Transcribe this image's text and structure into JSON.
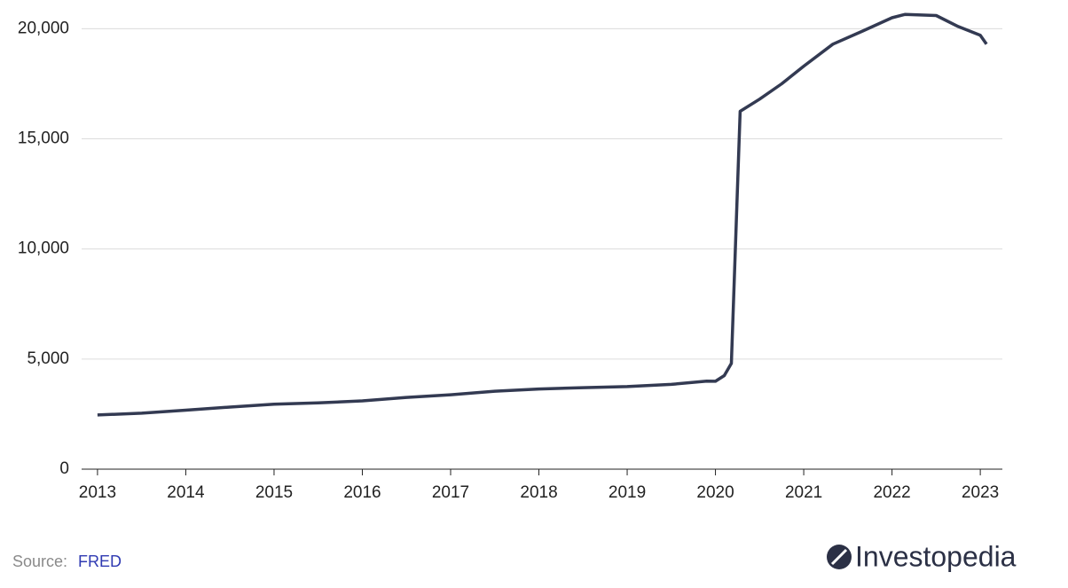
{
  "chart_data": {
    "type": "line",
    "x": [
      2013.0,
      2013.5,
      2014.0,
      2014.5,
      2015.0,
      2015.5,
      2016.0,
      2016.5,
      2017.0,
      2017.5,
      2018.0,
      2018.5,
      2019.0,
      2019.5,
      2019.9,
      2020.0,
      2020.1,
      2020.18,
      2020.28,
      2020.5,
      2020.75,
      2021.0,
      2021.33,
      2021.67,
      2022.0,
      2022.15,
      2022.5,
      2022.75,
      2023.0,
      2023.07
    ],
    "series": [
      {
        "color": "#333a52",
        "values": [
          2460,
          2540,
          2680,
          2820,
          2950,
          3010,
          3100,
          3260,
          3380,
          3540,
          3640,
          3700,
          3750,
          3850,
          4000,
          3990,
          4250,
          4800,
          16250,
          16800,
          17500,
          18300,
          19300,
          19900,
          20500,
          20650,
          20600,
          20100,
          19700,
          19300
        ]
      }
    ],
    "xlim": [
      2012.82,
      2023.25
    ],
    "xticks": [
      2013,
      2014,
      2015,
      2016,
      2017,
      2018,
      2019,
      2020,
      2021,
      2022,
      2023
    ],
    "ylim": [
      0,
      20700
    ],
    "yticks": [
      0,
      {
        "value": 5000,
        "label": "5,000"
      },
      {
        "value": 10000,
        "label": "10,000"
      },
      {
        "value": 15000,
        "label": "15,000"
      },
      {
        "value": 20000,
        "label": "20,000"
      }
    ],
    "grid": true
  },
  "footer": {
    "source_label": "Source:",
    "source": "FRED",
    "logo": "Investopedia"
  }
}
